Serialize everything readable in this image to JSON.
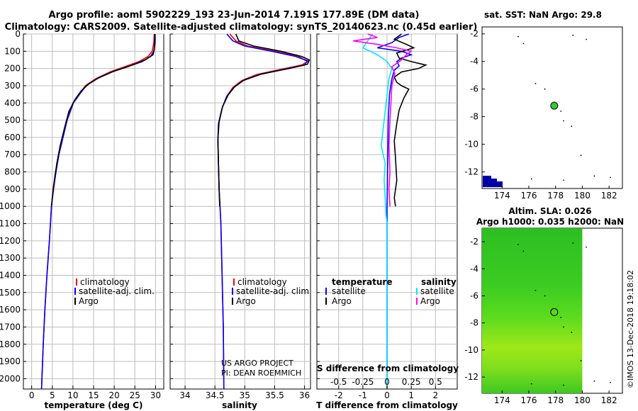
{
  "header": {
    "title_line1": "Argo profile: aoml 5902229_193 23-Jun-2014 7.191S 177.89E (DM data)",
    "title_line2": "Climatology: CARS2009. Satellite-adjusted climatology: synTS_20140623.nc (0.45d earlier)"
  },
  "colors": {
    "climatology": "#ff0000",
    "satellite": "#0000ff",
    "argo": "#000000",
    "salinity_satellite": "#00e5ff",
    "salinity_argo": "#ff00ff",
    "sla_field": "#33dd22",
    "argo_marker": "#33cc33",
    "land": "#0000aa"
  },
  "chart_data": [
    {
      "type": "line",
      "id": "temperature-profile",
      "xlabel": "temperature (deg C)",
      "ylabel": "depth",
      "xlim": [
        -2,
        32
      ],
      "ylim": [
        2060,
        0
      ],
      "y_inverted": true,
      "x_ticks": [
        0,
        5,
        10,
        15,
        20,
        25,
        30
      ],
      "y_ticks": [
        0,
        100,
        200,
        300,
        400,
        500,
        600,
        700,
        800,
        900,
        1000,
        1100,
        1200,
        1300,
        1400,
        1500,
        1600,
        1700,
        1800,
        1900,
        2000
      ],
      "legend": [
        "climatology",
        "satellite-adj. clim.",
        "Argo"
      ],
      "legend_position": "bottom-right",
      "series": [
        {
          "name": "climatology",
          "color_key": "climatology",
          "points": [
            [
              29.7,
              0
            ],
            [
              29.6,
              50
            ],
            [
              29.2,
              100
            ],
            [
              28.2,
              130
            ],
            [
              26.0,
              160
            ],
            [
              22.5,
              190
            ],
            [
              19.0,
              220
            ],
            [
              15.5,
              260
            ],
            [
              13.0,
              300
            ],
            [
              11.5,
              350
            ],
            [
              10.0,
              400
            ],
            [
              8.5,
              500
            ],
            [
              7.5,
              600
            ],
            [
              6.5,
              700
            ],
            [
              5.8,
              800
            ],
            [
              5.2,
              900
            ],
            [
              4.8,
              1000
            ],
            [
              4.3,
              1200
            ],
            [
              3.7,
              1400
            ],
            [
              3.2,
              1600
            ],
            [
              2.8,
              1800
            ],
            [
              2.4,
              2060
            ]
          ]
        },
        {
          "name": "satellite-adj. clim.",
          "color_key": "satellite",
          "points": [
            [
              29.9,
              0
            ],
            [
              29.9,
              50
            ],
            [
              29.6,
              100
            ],
            [
              28.8,
              130
            ],
            [
              26.8,
              160
            ],
            [
              23.2,
              190
            ],
            [
              19.5,
              220
            ],
            [
              15.8,
              260
            ],
            [
              13.2,
              300
            ],
            [
              11.6,
              350
            ],
            [
              10.1,
              400
            ],
            [
              8.6,
              500
            ],
            [
              7.6,
              600
            ],
            [
              6.6,
              700
            ],
            [
              5.9,
              800
            ],
            [
              5.3,
              900
            ],
            [
              4.8,
              1000
            ],
            [
              4.3,
              1200
            ],
            [
              3.7,
              1400
            ],
            [
              3.2,
              1600
            ],
            [
              2.8,
              1800
            ],
            [
              2.4,
              2060
            ]
          ]
        },
        {
          "name": "Argo",
          "color_key": "argo",
          "points": [
            [
              29.8,
              0
            ],
            [
              29.8,
              40
            ],
            [
              29.7,
              90
            ],
            [
              29.4,
              120
            ],
            [
              27.5,
              150
            ],
            [
              23.8,
              185
            ],
            [
              20.0,
              215
            ],
            [
              16.5,
              250
            ],
            [
              13.8,
              290
            ],
            [
              12.0,
              330
            ],
            [
              10.5,
              380
            ],
            [
              9.0,
              450
            ],
            [
              7.9,
              550
            ],
            [
              6.9,
              650
            ],
            [
              6.1,
              750
            ],
            [
              5.5,
              850
            ],
            [
              5.0,
              950
            ],
            [
              4.8,
              1000
            ]
          ]
        }
      ]
    },
    {
      "type": "line",
      "id": "salinity-profile",
      "xlabel": "salinity",
      "xlim": [
        33.75,
        36.1
      ],
      "ylim": [
        2060,
        0
      ],
      "y_inverted": true,
      "x_ticks": [
        34,
        34.5,
        35,
        35.5,
        36
      ],
      "legend": [
        "climatology",
        "satellite-adj. clim.",
        "Argo"
      ],
      "legend_position": "bottom-right",
      "annotations": [
        "US ARGO PROJECT",
        "PI: DEAN ROEMMICH"
      ],
      "series": [
        {
          "name": "climatology",
          "color_key": "climatology",
          "points": [
            [
              34.75,
              0
            ],
            [
              34.85,
              40
            ],
            [
              35.05,
              70
            ],
            [
              35.5,
              100
            ],
            [
              35.9,
              130
            ],
            [
              36.05,
              160
            ],
            [
              35.95,
              180
            ],
            [
              35.6,
              205
            ],
            [
              35.2,
              235
            ],
            [
              34.95,
              270
            ],
            [
              34.8,
              310
            ],
            [
              34.7,
              360
            ],
            [
              34.62,
              430
            ],
            [
              34.56,
              520
            ],
            [
              34.55,
              620
            ],
            [
              34.56,
              760
            ],
            [
              34.57,
              900
            ],
            [
              34.6,
              1100
            ],
            [
              34.62,
              1400
            ],
            [
              34.64,
              1700
            ],
            [
              34.65,
              2060
            ]
          ]
        },
        {
          "name": "satellite-adj. clim.",
          "color_key": "satellite",
          "points": [
            [
              34.7,
              0
            ],
            [
              34.8,
              40
            ],
            [
              35.0,
              70
            ],
            [
              35.45,
              100
            ],
            [
              35.85,
              130
            ],
            [
              36.05,
              155
            ],
            [
              36.0,
              180
            ],
            [
              35.65,
              205
            ],
            [
              35.25,
              235
            ],
            [
              34.97,
              270
            ],
            [
              34.82,
              310
            ],
            [
              34.7,
              360
            ],
            [
              34.62,
              430
            ],
            [
              34.56,
              520
            ],
            [
              34.55,
              620
            ],
            [
              34.56,
              760
            ],
            [
              34.57,
              900
            ],
            [
              34.6,
              1100
            ],
            [
              34.62,
              1400
            ],
            [
              34.64,
              1700
            ],
            [
              34.65,
              2060
            ]
          ]
        },
        {
          "name": "Argo",
          "color_key": "argo",
          "points": [
            [
              34.85,
              0
            ],
            [
              34.9,
              40
            ],
            [
              35.15,
              70
            ],
            [
              35.6,
              100
            ],
            [
              35.95,
              130
            ],
            [
              36.08,
              150
            ],
            [
              36.05,
              175
            ],
            [
              35.75,
              200
            ],
            [
              35.3,
              230
            ],
            [
              35.0,
              265
            ],
            [
              34.83,
              305
            ],
            [
              34.72,
              355
            ],
            [
              34.63,
              420
            ],
            [
              34.57,
              510
            ],
            [
              34.55,
              610
            ],
            [
              34.56,
              750
            ],
            [
              34.57,
              900
            ],
            [
              34.58,
              1000
            ]
          ]
        }
      ]
    },
    {
      "type": "line",
      "id": "difference-profile",
      "xlabel": "T difference from climatology",
      "x2label": "S difference from climatology",
      "xlim": [
        -2.9,
        2.9
      ],
      "ylim": [
        2060,
        0
      ],
      "y_inverted": true,
      "x_ticks": [
        -2,
        -1,
        0,
        1,
        2
      ],
      "s_ticks": [
        -0.5,
        -0.25,
        0,
        0.25,
        0.5
      ],
      "s_tick_labels": [
        "-0.5",
        "-0.25",
        "0",
        "0.25",
        "0.5"
      ],
      "s_scale": 4,
      "legend_titles": [
        "temperature",
        "salinity"
      ],
      "legend_left": [
        "satellite",
        "Argo"
      ],
      "legend_right": [
        "satellite",
        "Argo"
      ],
      "series": [
        {
          "name": "T satellite",
          "color_key": "satellite",
          "points": [
            [
              0.9,
              0
            ],
            [
              0.5,
              20
            ],
            [
              0.2,
              50
            ],
            [
              -0.4,
              80
            ],
            [
              0.6,
              100
            ],
            [
              1.0,
              120
            ],
            [
              0.6,
              140
            ],
            [
              0.4,
              160
            ],
            [
              0.5,
              185
            ],
            [
              0.3,
              210
            ],
            [
              0.2,
              260
            ],
            [
              0.1,
              350
            ],
            [
              0.05,
              500
            ],
            [
              0.02,
              800
            ],
            [
              0.0,
              1000
            ],
            [
              0.0,
              2060
            ]
          ]
        },
        {
          "name": "T Argo",
          "color_key": "argo",
          "points": [
            [
              0.6,
              0
            ],
            [
              0.3,
              30
            ],
            [
              0.8,
              60
            ],
            [
              1.1,
              80
            ],
            [
              0.4,
              110
            ],
            [
              0.5,
              140
            ],
            [
              1.0,
              160
            ],
            [
              1.6,
              180
            ],
            [
              1.3,
              200
            ],
            [
              0.6,
              220
            ],
            [
              0.3,
              250
            ],
            [
              0.4,
              280
            ],
            [
              0.6,
              300
            ],
            [
              0.9,
              320
            ],
            [
              0.7,
              370
            ],
            [
              0.5,
              440
            ],
            [
              0.4,
              520
            ],
            [
              0.3,
              620
            ],
            [
              0.35,
              720
            ],
            [
              0.4,
              850
            ],
            [
              0.3,
              950
            ],
            [
              0.35,
              1000
            ]
          ]
        },
        {
          "name": "S satellite",
          "color_key": "salinity_satellite",
          "points": [
            [
              -0.15,
              0
            ],
            [
              -0.2,
              40
            ],
            [
              -0.25,
              80
            ],
            [
              -0.1,
              120
            ],
            [
              0.0,
              160
            ],
            [
              0.05,
              200
            ],
            [
              0.02,
              260
            ],
            [
              0.0,
              350
            ],
            [
              -0.02,
              450
            ],
            [
              -0.04,
              550
            ],
            [
              -0.06,
              650
            ],
            [
              -0.02,
              750
            ],
            [
              -0.03,
              850
            ],
            [
              -0.02,
              950
            ],
            [
              -0.01,
              1050
            ],
            [
              0.0,
              1100
            ],
            [
              0.0,
              2060
            ]
          ]
        },
        {
          "name": "S Argo",
          "color_key": "salinity_argo",
          "points": [
            [
              -0.2,
              0
            ],
            [
              -0.1,
              20
            ],
            [
              -0.35,
              40
            ],
            [
              -0.1,
              60
            ],
            [
              0.1,
              80
            ],
            [
              0.25,
              100
            ],
            [
              0.2,
              120
            ],
            [
              0.15,
              150
            ],
            [
              0.05,
              190
            ],
            [
              0.08,
              230
            ],
            [
              0.05,
              300
            ],
            [
              0.04,
              400
            ],
            [
              0.03,
              500
            ],
            [
              0.02,
              650
            ],
            [
              0.03,
              800
            ],
            [
              0.02,
              900
            ],
            [
              0.03,
              1000
            ]
          ]
        }
      ]
    },
    {
      "type": "scatter",
      "id": "sst-map",
      "title": "sat. SST: NaN Argo: 29.8",
      "xlim": [
        172.5,
        183
      ],
      "ylim": [
        -13.2,
        -1.5
      ],
      "x_ticks": [
        174,
        176,
        178,
        180,
        182
      ],
      "y_ticks": [
        -2,
        -4,
        -6,
        -8,
        -10,
        -12
      ],
      "argo_position": [
        177.9,
        -7.2
      ]
    },
    {
      "type": "heatmap",
      "id": "sla-map",
      "title_line1": "Altim. SLA: 0.026",
      "title_line2": "Argo h1000: 0.035 h2000: NaN",
      "xlim": [
        172.5,
        183
      ],
      "ylim": [
        -13.2,
        -1.0
      ],
      "x_ticks": [
        174,
        176,
        178,
        180,
        182
      ],
      "y_ticks": [
        -2,
        -4,
        -6,
        -8,
        -10,
        -12
      ],
      "field_extent": {
        "lon": [
          172.5,
          180.0
        ],
        "lat": [
          -13.2,
          -1.0
        ]
      },
      "argo_position": [
        177.9,
        -7.2
      ]
    }
  ],
  "footer": {
    "watermark": "©IMOS 13-Dec-2018 19:18:02"
  }
}
